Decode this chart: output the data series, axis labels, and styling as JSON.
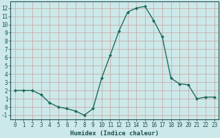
{
  "x": [
    0,
    1,
    2,
    3,
    4,
    5,
    6,
    7,
    8,
    9,
    10,
    11,
    12,
    13,
    14,
    15,
    16,
    17,
    18,
    19,
    20,
    21,
    22,
    23
  ],
  "y": [
    2,
    2,
    2,
    1.5,
    0.5,
    0,
    -0.2,
    -0.5,
    -1,
    -0.2,
    3.5,
    6.3,
    9.2,
    11.5,
    12,
    12.2,
    10.5,
    8.5,
    3.5,
    2.8,
    2.7,
    1,
    1.2,
    1.2
  ],
  "line_color": "#1a6b5a",
  "marker": "D",
  "marker_size": 2.0,
  "bg_color": "#cce8e8",
  "grid_major_color": "#c8aaaa",
  "grid_minor_color": "#ddc8c8",
  "xlabel": "Humidex (Indice chaleur)",
  "xlim": [
    -0.5,
    23.5
  ],
  "ylim": [
    -1.5,
    12.8
  ],
  "yticks": [
    -1,
    0,
    1,
    2,
    3,
    4,
    5,
    6,
    7,
    8,
    9,
    10,
    11,
    12
  ],
  "xticks": [
    0,
    1,
    2,
    3,
    4,
    5,
    6,
    7,
    8,
    9,
    10,
    11,
    12,
    13,
    14,
    15,
    16,
    17,
    18,
    19,
    20,
    21,
    22,
    23
  ],
  "xlabel_fontsize": 6.5,
  "tick_fontsize": 5.5,
  "line_width": 1.0,
  "text_color": "#1a5050"
}
